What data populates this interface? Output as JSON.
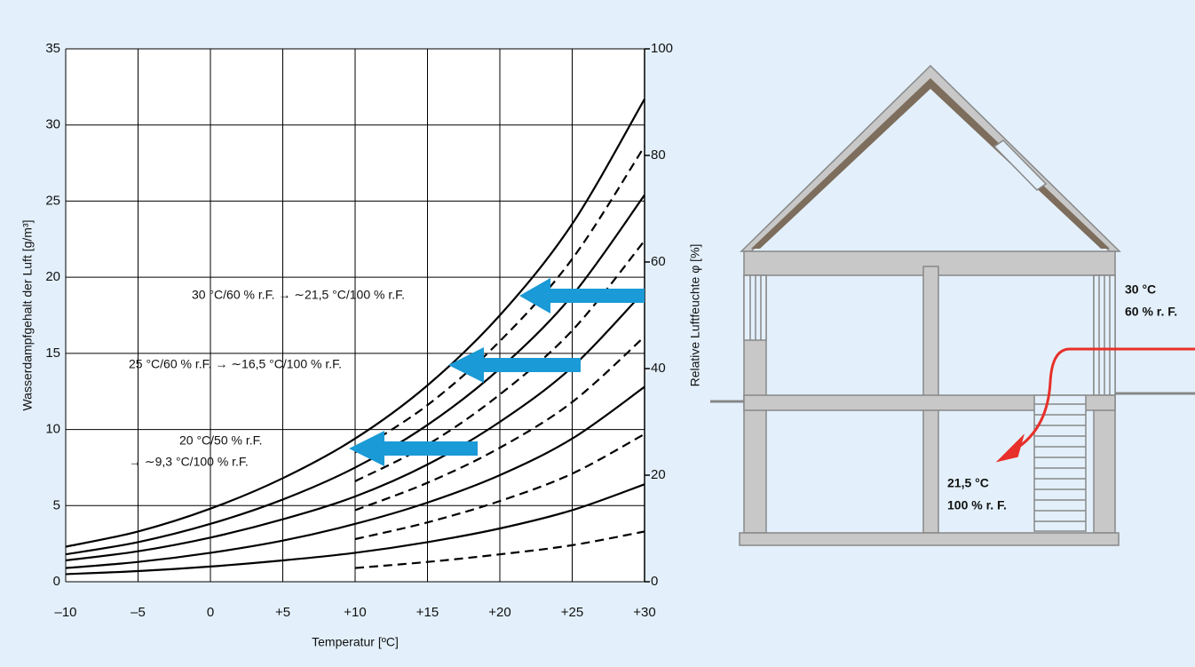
{
  "chart_data": {
    "type": "line",
    "xlabel": "Temperatur [ºC]",
    "ylabel": "Wasserdampfgehalt der Luft [g/m³]",
    "y2label": "Relative Luftfeuchte φ [%]",
    "x": [
      -10,
      -5,
      0,
      5,
      10,
      15,
      20,
      25,
      30
    ],
    "xlim": [
      -10,
      30
    ],
    "xticks": [
      {
        "value": -10,
        "label": "–10"
      },
      {
        "value": -5,
        "label": "–5"
      },
      0,
      {
        "value": 5,
        "label": "+5"
      },
      {
        "value": 10,
        "label": "+10"
      },
      {
        "value": 15,
        "label": "+15"
      },
      {
        "value": 20,
        "label": "+20"
      },
      {
        "value": 25,
        "label": "+25"
      },
      {
        "value": 30,
        "label": "+30"
      }
    ],
    "ylim": [
      0,
      35
    ],
    "yticks": [
      0,
      5,
      10,
      15,
      20,
      25,
      30,
      35
    ],
    "y2lim": [
      0,
      100
    ],
    "y2ticks": [
      0,
      20,
      40,
      60,
      80,
      100
    ],
    "grid": true,
    "series": [
      {
        "color": "#000000",
        "linestyle": "solid",
        "values": [
          2.3,
          3.3,
          4.8,
          6.8,
          9.4,
          12.9,
          17.5,
          23.5,
          31.7
        ]
      },
      {
        "color": "#000000",
        "linestyle": "dashed",
        "values": [
          null,
          null,
          null,
          null,
          8.5,
          11.6,
          15.8,
          21.2,
          28.6
        ]
      },
      {
        "color": "#000000",
        "linestyle": "solid",
        "values": [
          1.8,
          2.6,
          3.8,
          5.4,
          7.5,
          10.3,
          14.0,
          18.8,
          25.4
        ]
      },
      {
        "color": "#000000",
        "linestyle": "dashed",
        "values": [
          null,
          null,
          null,
          null,
          6.6,
          9.0,
          12.3,
          16.5,
          22.4
        ]
      },
      {
        "color": "#000000",
        "linestyle": "solid",
        "values": [
          1.4,
          2.0,
          2.9,
          4.1,
          5.6,
          7.7,
          10.5,
          14.1,
          19.1
        ]
      },
      {
        "color": "#000000",
        "linestyle": "dashed",
        "values": [
          null,
          null,
          null,
          null,
          4.7,
          6.5,
          8.8,
          11.8,
          16.1
        ]
      },
      {
        "color": "#000000",
        "linestyle": "solid",
        "values": [
          0.9,
          1.3,
          1.9,
          2.7,
          3.8,
          5.2,
          7.0,
          9.4,
          12.8
        ]
      },
      {
        "color": "#000000",
        "linestyle": "dashed",
        "values": [
          null,
          null,
          null,
          null,
          2.8,
          3.9,
          5.3,
          7.1,
          9.7
        ]
      },
      {
        "color": "#000000",
        "linestyle": "solid",
        "values": [
          0.5,
          0.7,
          1.0,
          1.4,
          1.9,
          2.6,
          3.5,
          4.7,
          6.4
        ]
      },
      {
        "color": "#000000",
        "linestyle": "dashed",
        "values": [
          null,
          null,
          null,
          null,
          0.9,
          1.3,
          1.8,
          2.4,
          3.3
        ]
      }
    ],
    "annotations": [
      "30 °C/60 % r.F. → ∼21,5 °C/100 % r.F.",
      "25 °C/60 % r.F. → ∼16,5 °C/100 % r.F.",
      "20 °C/50 % r.F.",
      "→ ∼9,3 °C/100 % r.F."
    ]
  },
  "diagram": {
    "outside_label": [
      "30 °C",
      "60 % r. F."
    ],
    "inside_label": [
      "21,5 °C",
      "100 % r. F."
    ]
  }
}
